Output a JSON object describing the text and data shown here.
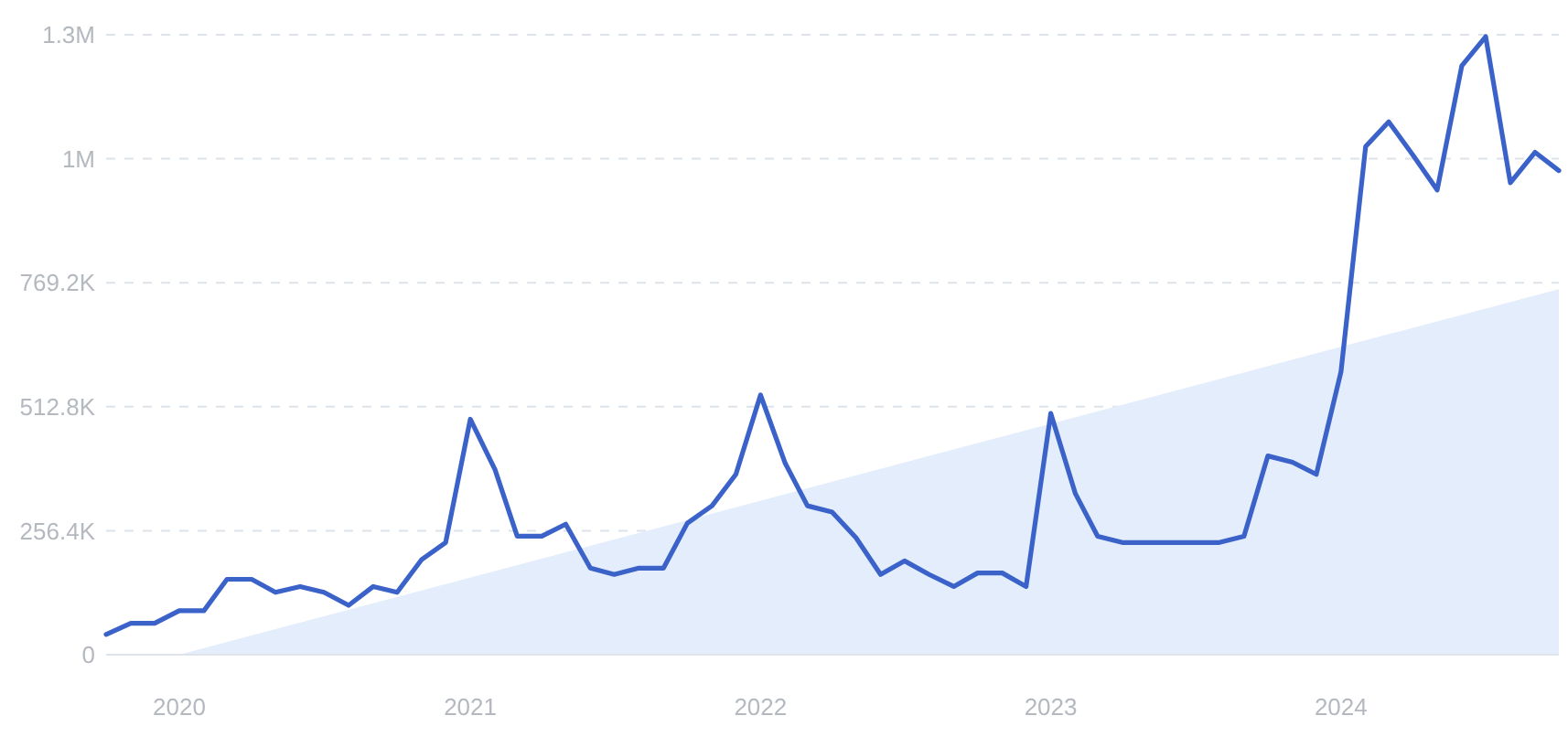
{
  "chart_data": {
    "type": "line",
    "xlim": [
      "2019-10",
      "2024-10"
    ],
    "xticks": [
      "2020",
      "2021",
      "2022",
      "2023",
      "2024"
    ],
    "ylim": [
      0,
      1282000
    ],
    "yticks": [
      0,
      {
        "value": 256400,
        "label": "256.4K"
      },
      {
        "value": 512800,
        "label": "512.8K"
      },
      {
        "value": 769200,
        "label": "769.2K"
      },
      {
        "value": 1025600,
        "label": "1M"
      },
      {
        "value": 1282000,
        "label": "1.3M"
      }
    ],
    "grid": "y",
    "marker": "none",
    "line_style": "solid",
    "x": [
      "2019-10",
      "2019-11",
      "2019-12",
      "2020-01",
      "2020-02",
      "2020-03",
      "2020-04",
      "2020-05",
      "2020-06",
      "2020-07",
      "2020-08",
      "2020-09",
      "2020-10",
      "2020-11",
      "2020-12",
      "2021-01",
      "2021-02",
      "2021-03",
      "2021-04",
      "2021-05",
      "2021-06",
      "2021-07",
      "2021-08",
      "2021-09",
      "2021-10",
      "2021-11",
      "2021-12",
      "2022-01",
      "2022-02",
      "2022-03",
      "2022-04",
      "2022-05",
      "2022-06",
      "2022-07",
      "2022-08",
      "2022-09",
      "2022-10",
      "2022-11",
      "2022-12",
      "2023-01",
      "2023-02",
      "2023-03",
      "2023-04",
      "2023-05",
      "2023-06",
      "2023-07",
      "2023-08",
      "2023-09",
      "2023-10",
      "2023-11",
      "2023-12",
      "2024-01",
      "2024-02",
      "2024-03",
      "2024-04",
      "2024-05",
      "2024-06",
      "2024-07",
      "2024-08",
      "2024-09",
      "2024-10"
    ],
    "series": [
      {
        "type": "area",
        "color": "#e3edfb",
        "x": [
          "2020-01",
          "2024-10"
        ],
        "values": [
          0,
          756000
        ]
      },
      {
        "color": "#3a62c9",
        "values": [
          42000,
          65000,
          65000,
          91000,
          91000,
          156000,
          156000,
          129000,
          141000,
          129000,
          102000,
          141000,
          129000,
          197000,
          232000,
          487000,
          383000,
          245000,
          245000,
          270000,
          179000,
          166000,
          179000,
          179000,
          272000,
          308000,
          373000,
          537000,
          396000,
          308000,
          295000,
          242000,
          166000,
          194000,
          166000,
          141000,
          169000,
          169000,
          141000,
          499000,
          333000,
          245000,
          232000,
          232000,
          232000,
          232000,
          232000,
          245000,
          411000,
          398000,
          373000,
          585000,
          1051000,
          1102000,
          1032000,
          961000,
          1218000,
          1278000,
          976000,
          1039000,
          1001000
        ]
      }
    ]
  }
}
